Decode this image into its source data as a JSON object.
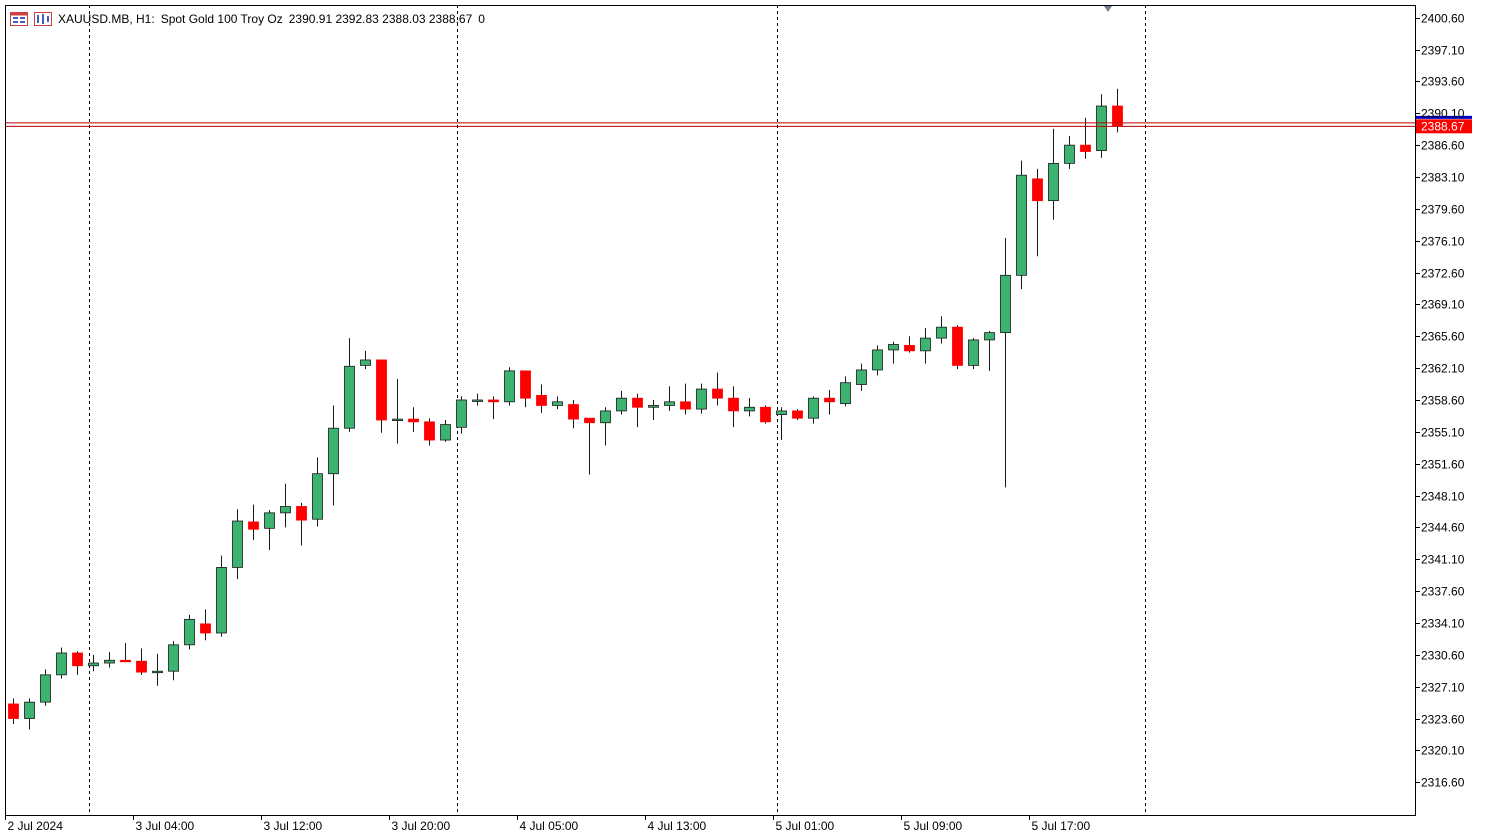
{
  "header": {
    "symbol": "XAUUSD.MB, H1:",
    "description": "Spot Gold 100 Troy Oz",
    "ohlc": "2390.91 2392.83 2388.03 2388.67",
    "extra": "0"
  },
  "icons": [
    "chart-window-icon",
    "trade-tools-icon"
  ],
  "colors": {
    "bull": "#3cb371",
    "bear": "#ff0000",
    "bid_line": "#c00000",
    "ask_line": "#0000cc",
    "price_tag": "#ff0000"
  },
  "chart_data": {
    "type": "candlestick",
    "ylim": [
      2313.0,
      2402.0
    ],
    "yticks": [
      2400.6,
      2397.1,
      2393.6,
      2390.1,
      2386.6,
      2383.1,
      2379.6,
      2376.1,
      2372.6,
      2369.1,
      2365.6,
      2362.1,
      2358.6,
      2355.1,
      2351.6,
      2348.1,
      2344.6,
      2341.1,
      2337.6,
      2334.1,
      2330.6,
      2327.1,
      2323.6,
      2320.1,
      2316.6
    ],
    "ytick_labels": [
      "2400.60",
      "2397.10",
      "2393.60",
      "2390.10",
      "2386.60",
      "2383.10",
      "2379.60",
      "2376.10",
      "2372.60",
      "2369.10",
      "2365.60",
      "2362.10",
      "2358.60",
      "2355.10",
      "2351.60",
      "2348.10",
      "2344.60",
      "2341.10",
      "2337.60",
      "2334.10",
      "2330.60",
      "2327.10",
      "2323.60",
      "2320.10",
      "2316.60"
    ],
    "xtick_labels": [
      {
        "bar": 0,
        "label": "2 Jul 2024"
      },
      {
        "bar": 8,
        "label": "3 Jul 04:00"
      },
      {
        "bar": 16,
        "label": "3 Jul 12:00"
      },
      {
        "bar": 24,
        "label": "3 Jul 20:00"
      },
      {
        "bar": 32,
        "label": "4 Jul 05:00"
      },
      {
        "bar": 40,
        "label": "4 Jul 13:00"
      },
      {
        "bar": 48,
        "label": "5 Jul 01:00"
      },
      {
        "bar": 56,
        "label": "5 Jul 09:00"
      },
      {
        "bar": 64,
        "label": "5 Jul 17:00"
      }
    ],
    "period_separators": [
      4.75,
      27.75,
      47.75,
      70.75
    ],
    "current_price": 2388.67,
    "current_price_label": "2388.67",
    "ask_price": 2389.05,
    "candles": [
      {
        "o": 2325.2,
        "h": 2325.8,
        "l": 2323.0,
        "c": 2323.6
      },
      {
        "o": 2323.6,
        "h": 2325.8,
        "l": 2322.4,
        "c": 2325.4
      },
      {
        "o": 2325.4,
        "h": 2329.0,
        "l": 2325.0,
        "c": 2328.4
      },
      {
        "o": 2328.4,
        "h": 2331.4,
        "l": 2328.0,
        "c": 2330.8
      },
      {
        "o": 2330.8,
        "h": 2331.0,
        "l": 2328.4,
        "c": 2329.4
      },
      {
        "o": 2329.4,
        "h": 2330.6,
        "l": 2328.8,
        "c": 2329.7
      },
      {
        "o": 2329.7,
        "h": 2330.9,
        "l": 2329.2,
        "c": 2330.0
      },
      {
        "o": 2330.0,
        "h": 2331.9,
        "l": 2329.8,
        "c": 2329.9
      },
      {
        "o": 2329.9,
        "h": 2331.3,
        "l": 2328.4,
        "c": 2328.7
      },
      {
        "o": 2328.7,
        "h": 2330.7,
        "l": 2327.2,
        "c": 2328.8
      },
      {
        "o": 2328.8,
        "h": 2332.1,
        "l": 2327.8,
        "c": 2331.7
      },
      {
        "o": 2331.7,
        "h": 2335.0,
        "l": 2331.2,
        "c": 2334.5
      },
      {
        "o": 2334.0,
        "h": 2335.6,
        "l": 2332.2,
        "c": 2333.0
      },
      {
        "o": 2333.0,
        "h": 2341.5,
        "l": 2332.6,
        "c": 2340.2
      },
      {
        "o": 2340.2,
        "h": 2346.6,
        "l": 2338.9,
        "c": 2345.3
      },
      {
        "o": 2345.2,
        "h": 2347.1,
        "l": 2343.2,
        "c": 2344.4
      },
      {
        "o": 2344.5,
        "h": 2346.5,
        "l": 2342.1,
        "c": 2346.2
      },
      {
        "o": 2346.2,
        "h": 2349.4,
        "l": 2344.6,
        "c": 2346.9
      },
      {
        "o": 2346.9,
        "h": 2347.3,
        "l": 2342.6,
        "c": 2345.4
      },
      {
        "o": 2345.5,
        "h": 2352.3,
        "l": 2344.7,
        "c": 2350.5
      },
      {
        "o": 2350.5,
        "h": 2358.0,
        "l": 2347.0,
        "c": 2355.5
      },
      {
        "o": 2355.5,
        "h": 2365.4,
        "l": 2355.1,
        "c": 2362.3
      },
      {
        "o": 2362.4,
        "h": 2364.0,
        "l": 2362.0,
        "c": 2363.0
      },
      {
        "o": 2363.0,
        "h": 2363.0,
        "l": 2355.0,
        "c": 2356.4
      },
      {
        "o": 2356.4,
        "h": 2360.9,
        "l": 2353.8,
        "c": 2356.5
      },
      {
        "o": 2356.5,
        "h": 2357.8,
        "l": 2355.1,
        "c": 2356.2
      },
      {
        "o": 2356.2,
        "h": 2356.6,
        "l": 2353.6,
        "c": 2354.2
      },
      {
        "o": 2354.2,
        "h": 2356.4,
        "l": 2354.0,
        "c": 2355.9
      },
      {
        "o": 2355.6,
        "h": 2359.0,
        "l": 2354.9,
        "c": 2358.6
      },
      {
        "o": 2358.6,
        "h": 2359.3,
        "l": 2358.0,
        "c": 2358.6
      },
      {
        "o": 2358.6,
        "h": 2359.0,
        "l": 2356.5,
        "c": 2358.4
      },
      {
        "o": 2358.4,
        "h": 2362.2,
        "l": 2358.0,
        "c": 2361.8
      },
      {
        "o": 2361.8,
        "h": 2361.8,
        "l": 2357.8,
        "c": 2358.8
      },
      {
        "o": 2359.1,
        "h": 2360.3,
        "l": 2357.2,
        "c": 2358.0
      },
      {
        "o": 2358.0,
        "h": 2359.0,
        "l": 2357.6,
        "c": 2358.4
      },
      {
        "o": 2358.1,
        "h": 2358.6,
        "l": 2355.5,
        "c": 2356.5
      },
      {
        "o": 2356.6,
        "h": 2356.6,
        "l": 2350.4,
        "c": 2356.1
      },
      {
        "o": 2356.1,
        "h": 2357.8,
        "l": 2353.6,
        "c": 2357.4
      },
      {
        "o": 2357.4,
        "h": 2359.6,
        "l": 2357.0,
        "c": 2358.8
      },
      {
        "o": 2358.8,
        "h": 2359.3,
        "l": 2355.6,
        "c": 2357.8
      },
      {
        "o": 2357.8,
        "h": 2358.6,
        "l": 2356.4,
        "c": 2358.0
      },
      {
        "o": 2358.0,
        "h": 2360.1,
        "l": 2357.4,
        "c": 2358.4
      },
      {
        "o": 2358.4,
        "h": 2360.4,
        "l": 2357.0,
        "c": 2357.6
      },
      {
        "o": 2357.6,
        "h": 2360.4,
        "l": 2357.1,
        "c": 2359.8
      },
      {
        "o": 2359.8,
        "h": 2361.6,
        "l": 2358.0,
        "c": 2358.8
      },
      {
        "o": 2358.8,
        "h": 2360.1,
        "l": 2355.6,
        "c": 2357.4
      },
      {
        "o": 2357.4,
        "h": 2358.8,
        "l": 2356.8,
        "c": 2357.8
      },
      {
        "o": 2357.8,
        "h": 2358.0,
        "l": 2356.0,
        "c": 2356.2
      },
      {
        "o": 2357.0,
        "h": 2357.8,
        "l": 2354.2,
        "c": 2357.4
      },
      {
        "o": 2357.4,
        "h": 2357.6,
        "l": 2356.4,
        "c": 2356.6
      },
      {
        "o": 2356.6,
        "h": 2359.0,
        "l": 2356.0,
        "c": 2358.8
      },
      {
        "o": 2358.8,
        "h": 2359.7,
        "l": 2357.0,
        "c": 2358.4
      },
      {
        "o": 2358.2,
        "h": 2361.2,
        "l": 2357.9,
        "c": 2360.5
      },
      {
        "o": 2360.3,
        "h": 2362.6,
        "l": 2359.6,
        "c": 2361.9
      },
      {
        "o": 2361.9,
        "h": 2364.6,
        "l": 2361.3,
        "c": 2364.1
      },
      {
        "o": 2364.1,
        "h": 2365.0,
        "l": 2362.6,
        "c": 2364.7
      },
      {
        "o": 2364.6,
        "h": 2365.6,
        "l": 2363.8,
        "c": 2364.0
      },
      {
        "o": 2364.0,
        "h": 2366.5,
        "l": 2362.6,
        "c": 2365.4
      },
      {
        "o": 2365.4,
        "h": 2367.8,
        "l": 2364.8,
        "c": 2366.6
      },
      {
        "o": 2366.6,
        "h": 2366.8,
        "l": 2362.0,
        "c": 2362.4
      },
      {
        "o": 2362.4,
        "h": 2365.4,
        "l": 2362.0,
        "c": 2365.2
      },
      {
        "o": 2365.2,
        "h": 2366.2,
        "l": 2361.8,
        "c": 2366.0
      },
      {
        "o": 2366.0,
        "h": 2376.4,
        "l": 2349.0,
        "c": 2372.3
      },
      {
        "o": 2372.3,
        "h": 2384.9,
        "l": 2370.8,
        "c": 2383.3
      },
      {
        "o": 2382.9,
        "h": 2384.0,
        "l": 2374.4,
        "c": 2380.5
      },
      {
        "o": 2380.5,
        "h": 2388.4,
        "l": 2378.4,
        "c": 2384.6
      },
      {
        "o": 2384.6,
        "h": 2387.6,
        "l": 2384.0,
        "c": 2386.6
      },
      {
        "o": 2386.6,
        "h": 2389.6,
        "l": 2385.1,
        "c": 2385.9
      },
      {
        "o": 2386.0,
        "h": 2392.2,
        "l": 2385.2,
        "c": 2390.9
      },
      {
        "o": 2390.9,
        "h": 2392.8,
        "l": 2388.0,
        "c": 2388.7
      }
    ]
  }
}
